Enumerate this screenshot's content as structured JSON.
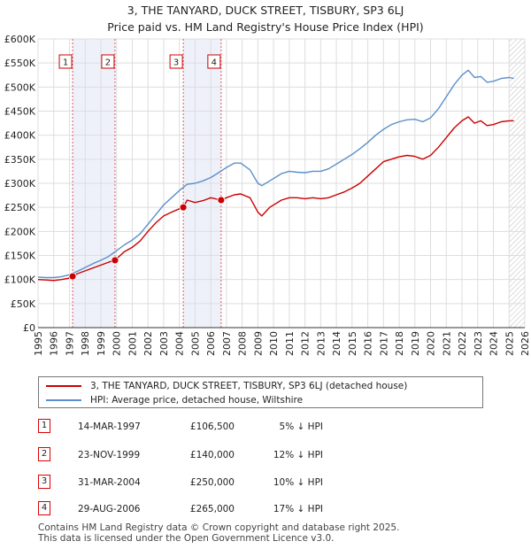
{
  "title_line1": "3, THE TANYARD, DUCK STREET, TISBURY, SP3 6LJ",
  "title_line2": "Price paid vs. HM Land Registry's House Price Index (HPI)",
  "legend": {
    "series_property": "3, THE TANYARD, DUCK STREET, TISBURY, SP3 6LJ (detached house)",
    "series_hpi": "HPI: Average price, detached house, Wiltshire"
  },
  "colors": {
    "property": "#cc0000",
    "hpi": "#5b8fc9",
    "sale_band": "#eef1fa",
    "sale_line": "#e05555"
  },
  "sales": [
    {
      "num": "1",
      "date": "14-MAR-1997",
      "price": "£106,500",
      "hpi": "5% ↓ HPI"
    },
    {
      "num": "2",
      "date": "23-NOV-1999",
      "price": "£140,000",
      "hpi": "12% ↓ HPI"
    },
    {
      "num": "3",
      "date": "31-MAR-2004",
      "price": "£250,000",
      "hpi": "10% ↓ HPI"
    },
    {
      "num": "4",
      "date": "29-AUG-2006",
      "price": "£265,000",
      "hpi": "17% ↓ HPI"
    }
  ],
  "footer_line1": "Contains HM Land Registry data © Crown copyright and database right 2025.",
  "footer_line2": "This data is licensed under the Open Government Licence v3.0.",
  "chart_data": {
    "type": "line",
    "title": "3, THE TANYARD, DUCK STREET, TISBURY, SP3 6LJ — Price paid vs. HM Land Registry's House Price Index (HPI)",
    "xlabel": "",
    "ylabel": "",
    "xlim": [
      1995,
      2026
    ],
    "ylim": [
      0,
      600000
    ],
    "grid": true,
    "x_ticks": [
      1995,
      1996,
      1997,
      1998,
      1999,
      2000,
      2001,
      2002,
      2003,
      2004,
      2005,
      2006,
      2007,
      2008,
      2009,
      2010,
      2011,
      2012,
      2013,
      2014,
      2015,
      2016,
      2017,
      2018,
      2019,
      2020,
      2021,
      2022,
      2023,
      2024,
      2025,
      2026
    ],
    "y_ticks": [
      0,
      50000,
      100000,
      150000,
      200000,
      250000,
      300000,
      350000,
      400000,
      450000,
      500000,
      550000,
      600000
    ],
    "y_tick_labels": [
      "£0",
      "£50K",
      "£100K",
      "£150K",
      "£200K",
      "£250K",
      "£300K",
      "£350K",
      "£400K",
      "£450K",
      "£500K",
      "£550K",
      "£600K"
    ],
    "sale_bands": [
      [
        1997.2,
        1999.9
      ],
      [
        2004.25,
        2006.66
      ]
    ],
    "sale_points": [
      {
        "label": "1",
        "x": 1997.2,
        "y": 106500
      },
      {
        "label": "2",
        "x": 1999.9,
        "y": 140000
      },
      {
        "label": "3",
        "x": 2004.25,
        "y": 250000
      },
      {
        "label": "4",
        "x": 2006.66,
        "y": 265000
      }
    ],
    "future_hatch_from": 2025.0,
    "series": [
      {
        "name": "3, THE TANYARD, DUCK STREET, TISBURY, SP3 6LJ (detached house)",
        "color": "#cc0000",
        "x": [
          1995.0,
          1995.5,
          1996.0,
          1996.5,
          1997.0,
          1997.2,
          1997.5,
          1998.0,
          1998.5,
          1999.0,
          1999.5,
          1999.9,
          2000.5,
          2001.0,
          2001.5,
          2002.0,
          2002.5,
          2003.0,
          2003.5,
          2004.0,
          2004.25,
          2004.5,
          2005.0,
          2005.5,
          2006.0,
          2006.66,
          2007.0,
          2007.5,
          2007.9,
          2008.5,
          2009.0,
          2009.25,
          2009.75,
          2010.5,
          2011.0,
          2011.5,
          2012.0,
          2012.5,
          2013.0,
          2013.5,
          2014.0,
          2014.5,
          2015.0,
          2015.5,
          2016.0,
          2016.5,
          2017.0,
          2017.5,
          2018.0,
          2018.5,
          2019.0,
          2019.5,
          2020.0,
          2020.5,
          2021.0,
          2021.5,
          2022.0,
          2022.4,
          2022.8,
          2023.2,
          2023.6,
          2024.0,
          2024.5,
          2025.0,
          2025.3
        ],
        "values": [
          100000,
          99000,
          98000,
          100000,
          103000,
          106500,
          112000,
          118000,
          124000,
          130000,
          136000,
          140000,
          158000,
          167000,
          180000,
          200000,
          218000,
          232000,
          240000,
          247000,
          250000,
          265000,
          260000,
          264000,
          270000,
          265000,
          270000,
          276000,
          278000,
          270000,
          240000,
          232000,
          250000,
          265000,
          270000,
          270000,
          268000,
          270000,
          268000,
          270000,
          276000,
          282000,
          290000,
          300000,
          315000,
          330000,
          345000,
          350000,
          355000,
          358000,
          356000,
          350000,
          358000,
          375000,
          395000,
          415000,
          430000,
          438000,
          425000,
          430000,
          420000,
          422000,
          428000,
          430000,
          430000
        ]
      },
      {
        "name": "HPI: Average price, detached house, Wiltshire",
        "color": "#5b8fc9",
        "x": [
          1995.0,
          1995.5,
          1996.0,
          1996.5,
          1997.0,
          1997.5,
          1998.0,
          1998.5,
          1999.0,
          1999.5,
          2000.0,
          2000.5,
          2001.0,
          2001.5,
          2002.0,
          2002.5,
          2003.0,
          2003.5,
          2004.0,
          2004.5,
          2005.0,
          2005.5,
          2006.0,
          2006.5,
          2007.0,
          2007.5,
          2007.9,
          2008.5,
          2009.0,
          2009.25,
          2009.75,
          2010.5,
          2011.0,
          2011.5,
          2012.0,
          2012.5,
          2013.0,
          2013.5,
          2014.0,
          2014.5,
          2015.0,
          2015.5,
          2016.0,
          2016.5,
          2017.0,
          2017.5,
          2018.0,
          2018.5,
          2019.0,
          2019.5,
          2020.0,
          2020.5,
          2021.0,
          2021.5,
          2022.0,
          2022.4,
          2022.8,
          2023.2,
          2023.6,
          2024.0,
          2024.5,
          2025.0,
          2025.3
        ],
        "values": [
          105000,
          104000,
          104000,
          106000,
          110000,
          117000,
          125000,
          133000,
          140000,
          148000,
          160000,
          172000,
          182000,
          195000,
          215000,
          235000,
          255000,
          270000,
          285000,
          298000,
          300000,
          305000,
          312000,
          322000,
          333000,
          342000,
          342000,
          328000,
          300000,
          295000,
          305000,
          320000,
          325000,
          323000,
          322000,
          325000,
          325000,
          330000,
          340000,
          350000,
          360000,
          372000,
          385000,
          400000,
          412000,
          422000,
          428000,
          432000,
          433000,
          428000,
          436000,
          455000,
          480000,
          505000,
          525000,
          535000,
          520000,
          522000,
          510000,
          512000,
          518000,
          520000,
          518000
        ]
      }
    ]
  }
}
